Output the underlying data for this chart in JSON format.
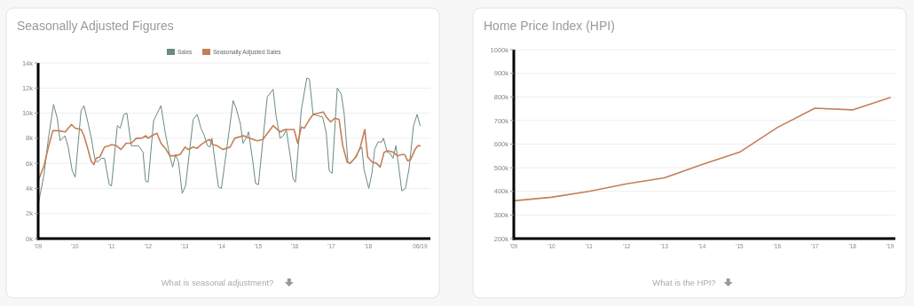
{
  "chart_data": [
    {
      "type": "line",
      "title": "Seasonally Adjusted Figures",
      "legend": "top",
      "grid": "y",
      "annotations": [
        "What is seasonal adjustment?"
      ],
      "xlim": [
        2009,
        2019.7
      ],
      "xticks": [
        {
          "value": 2009,
          "label": "'09"
        },
        {
          "value": 2010,
          "label": "'10"
        },
        {
          "value": 2011,
          "label": "'11"
        },
        {
          "value": 2012,
          "label": "'12"
        },
        {
          "value": 2013,
          "label": "'13"
        },
        {
          "value": 2014,
          "label": "'14"
        },
        {
          "value": 2015,
          "label": "'15"
        },
        {
          "value": 2016,
          "label": "'16"
        },
        {
          "value": 2017,
          "label": "'17"
        },
        {
          "value": 2018,
          "label": "'18"
        },
        {
          "value": 2019.42,
          "label": "06/19"
        }
      ],
      "ylim": [
        0,
        14000
      ],
      "yticks": [
        {
          "value": 0,
          "label": "0k"
        },
        {
          "value": 2000,
          "label": "2k"
        },
        {
          "value": 4000,
          "label": "4k"
        },
        {
          "value": 6000,
          "label": "6k"
        },
        {
          "value": 8000,
          "label": "8k"
        },
        {
          "value": 10000,
          "label": "10k"
        },
        {
          "value": 12000,
          "label": "12k"
        },
        {
          "value": 14000,
          "label": "14k"
        }
      ],
      "series": [
        {
          "name": "Sales",
          "color": "#6b8a80",
          "x": [
            2009.0,
            2009.16,
            2009.28,
            2009.42,
            2009.52,
            2009.6,
            2009.73,
            2009.82,
            2009.93,
            2010.01,
            2010.17,
            2010.25,
            2010.37,
            2010.45,
            2010.55,
            2010.61,
            2010.73,
            2010.81,
            2010.94,
            2011.0,
            2011.16,
            2011.24,
            2011.34,
            2011.42,
            2011.54,
            2011.74,
            2011.86,
            2011.93,
            2012.0,
            2012.15,
            2012.35,
            2012.47,
            2012.59,
            2012.67,
            2012.75,
            2012.83,
            2012.93,
            2013.02,
            2013.23,
            2013.34,
            2013.44,
            2013.52,
            2013.62,
            2013.69,
            2013.74,
            2013.84,
            2013.92,
            2014.0,
            2014.32,
            2014.4,
            2014.52,
            2014.59,
            2014.67,
            2014.74,
            2014.85,
            2014.93,
            2015.01,
            2015.25,
            2015.41,
            2015.49,
            2015.6,
            2015.69,
            2015.77,
            2015.9,
            2015.95,
            2016.02,
            2016.18,
            2016.33,
            2016.4,
            2016.5,
            2016.62,
            2016.76,
            2016.86,
            2016.94,
            2017.02,
            2017.16,
            2017.27,
            2017.35,
            2017.45,
            2017.51,
            2017.63,
            2017.75,
            2017.83,
            2017.89,
            2018.02,
            2018.11,
            2018.18,
            2018.27,
            2018.37,
            2018.42,
            2018.52,
            2018.6,
            2018.68,
            2018.76,
            2018.82,
            2018.92,
            2019.02,
            2019.12,
            2019.24,
            2019.34,
            2019.42
          ],
          "values": [
            2700,
            5100,
            8000,
            10700,
            9600,
            7800,
            8200,
            7300,
            5400,
            4900,
            10200,
            10600,
            9100,
            8000,
            6300,
            6100,
            6400,
            6400,
            4300,
            4200,
            9000,
            8800,
            9900,
            10000,
            7400,
            7400,
            6900,
            4600,
            4500,
            9400,
            10600,
            8400,
            6600,
            5700,
            6700,
            6100,
            3600,
            4200,
            9500,
            9900,
            8800,
            8300,
            7400,
            7300,
            8000,
            5800,
            4100,
            4000,
            11000,
            10400,
            9100,
            7600,
            8000,
            8500,
            6300,
            4400,
            4300,
            11300,
            11900,
            9800,
            8000,
            8200,
            8700,
            6100,
            4800,
            4500,
            10300,
            12800,
            12700,
            9900,
            9800,
            9700,
            8400,
            5400,
            5200,
            12000,
            11500,
            9900,
            6100,
            6000,
            6400,
            7000,
            7300,
            5500,
            4000,
            5300,
            7100,
            7700,
            7700,
            8000,
            6900,
            6800,
            6400,
            7400,
            6100,
            3800,
            4000,
            5600,
            9000,
            9900,
            9000
          ]
        },
        {
          "name": "Seasonally Adjusted Sales",
          "color": "#c47f56",
          "x": [
            2009.0,
            2009.16,
            2009.28,
            2009.4,
            2009.48,
            2009.56,
            2009.74,
            2009.82,
            2009.91,
            2010.01,
            2010.17,
            2010.25,
            2010.37,
            2010.44,
            2010.52,
            2010.58,
            2010.68,
            2010.81,
            2010.94,
            2011.0,
            2011.14,
            2011.26,
            2011.4,
            2011.54,
            2011.68,
            2011.82,
            2011.94,
            2012.0,
            2012.1,
            2012.24,
            2012.35,
            2012.47,
            2012.59,
            2012.71,
            2012.87,
            2013.01,
            2013.09,
            2013.23,
            2013.34,
            2013.45,
            2013.6,
            2013.68,
            2013.76,
            2013.88,
            2014.04,
            2014.24,
            2014.36,
            2014.6,
            2014.77,
            2014.97,
            2015.13,
            2015.41,
            2015.49,
            2015.61,
            2015.73,
            2015.9,
            2015.98,
            2016.08,
            2016.18,
            2016.26,
            2016.38,
            2016.5,
            2016.66,
            2016.78,
            2016.86,
            2016.98,
            2017.1,
            2017.21,
            2017.31,
            2017.43,
            2017.51,
            2017.67,
            2017.79,
            2017.91,
            2017.99,
            2018.11,
            2018.23,
            2018.33,
            2018.44,
            2018.56,
            2018.68,
            2018.8,
            2018.92,
            2019.0,
            2019.08,
            2019.16,
            2019.28,
            2019.36,
            2019.42
          ],
          "values": [
            4600,
            5800,
            7300,
            8600,
            8600,
            8600,
            8500,
            8800,
            9100,
            8800,
            8700,
            8200,
            7000,
            6200,
            5900,
            6400,
            6500,
            7300,
            7400,
            7500,
            7400,
            7100,
            7600,
            7600,
            8000,
            8000,
            8200,
            8000,
            8200,
            8400,
            7600,
            7200,
            6600,
            6600,
            6700,
            7300,
            7100,
            7300,
            7200,
            7500,
            7800,
            7900,
            7500,
            7400,
            7100,
            7300,
            8000,
            8200,
            8000,
            7800,
            7900,
            9000,
            8800,
            8500,
            8700,
            8700,
            8700,
            7600,
            8900,
            8800,
            9400,
            9900,
            10000,
            10100,
            9700,
            9300,
            9600,
            9500,
            7400,
            6100,
            6000,
            6500,
            7300,
            8700,
            6500,
            6100,
            6000,
            5700,
            6900,
            7000,
            6900,
            6600,
            6700,
            6700,
            6200,
            6300,
            7100,
            7400,
            7400
          ]
        }
      ]
    },
    {
      "type": "line",
      "title": "Home Price Index (HPI)",
      "legend": false,
      "grid": "y",
      "annotations": [
        "What is the HPI?"
      ],
      "xlim": [
        2009,
        2019.14
      ],
      "xticks": [
        {
          "value": 2009,
          "label": "'09"
        },
        {
          "value": 2010,
          "label": "'10"
        },
        {
          "value": 2011,
          "label": "'11"
        },
        {
          "value": 2012,
          "label": "'12"
        },
        {
          "value": 2013,
          "label": "'13"
        },
        {
          "value": 2014,
          "label": "'14"
        },
        {
          "value": 2015,
          "label": "'15"
        },
        {
          "value": 2016,
          "label": "'16"
        },
        {
          "value": 2017,
          "label": "'17"
        },
        {
          "value": 2018,
          "label": "'18"
        },
        {
          "value": 2019,
          "label": "'19"
        }
      ],
      "ylim": [
        200000,
        1000000
      ],
      "yticks": [
        {
          "value": 200000,
          "label": "200k"
        },
        {
          "value": 300000,
          "label": "300k"
        },
        {
          "value": 400000,
          "label": "400k"
        },
        {
          "value": 500000,
          "label": "500k"
        },
        {
          "value": 600000,
          "label": "600k"
        },
        {
          "value": 700000,
          "label": "700k"
        },
        {
          "value": 800000,
          "label": "800k"
        },
        {
          "value": 900000,
          "label": "900k"
        },
        {
          "value": 1000000,
          "label": "1000k"
        }
      ],
      "series": [
        {
          "color": "#c47f56",
          "x": [
            2009,
            2010,
            2011,
            2012,
            2013,
            2014,
            2015,
            2016,
            2017,
            2018,
            2019
          ],
          "values": [
            360000,
            375000,
            400000,
            432000,
            457000,
            514000,
            566000,
            670000,
            752000,
            745000,
            797000
          ]
        }
      ]
    }
  ]
}
